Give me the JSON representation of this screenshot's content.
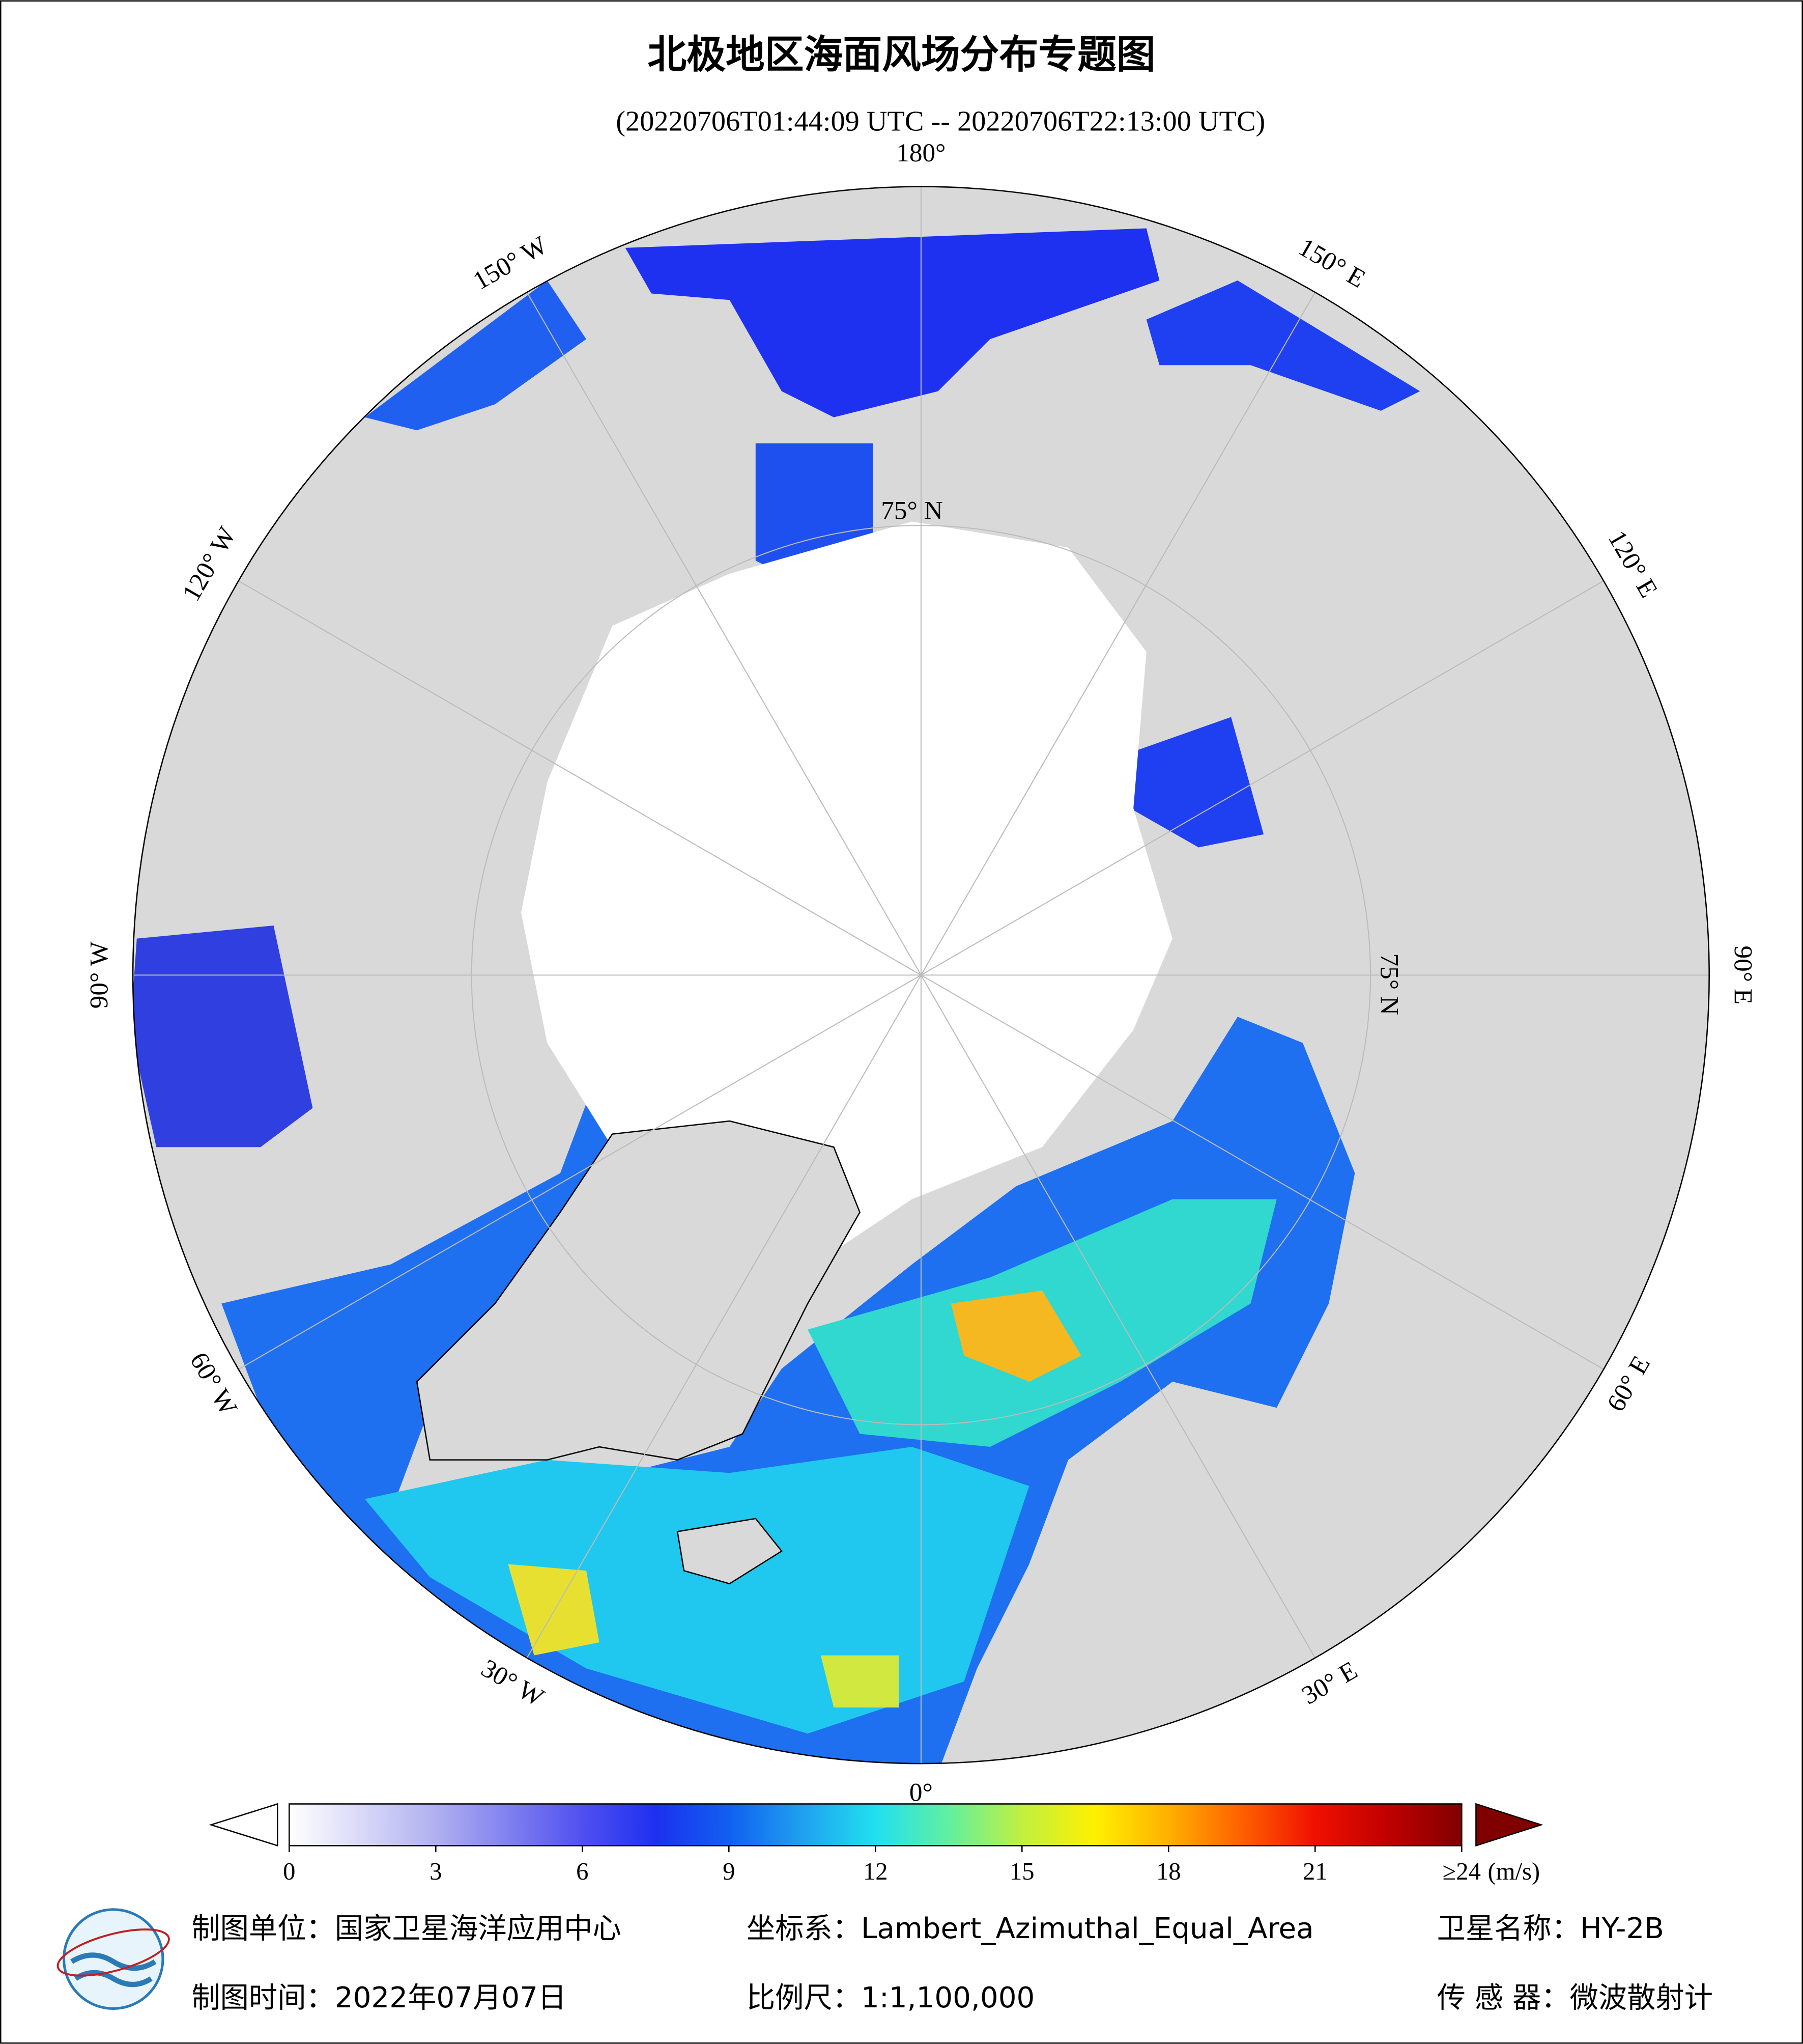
{
  "header": {
    "title": "北极地区海面风场分布专题图",
    "subtitle": "(20220706T01:44:09 UTC -- 20220706T22:13:00 UTC)"
  },
  "map": {
    "longitude_labels": [
      "180°",
      "150° E",
      "120° E",
      "90° E",
      "60° E",
      "30° E",
      "0°",
      "30° W",
      "60° W",
      "90° W",
      "120° W",
      "150° W"
    ],
    "latitude_labels": [
      "75° N",
      "75° N"
    ]
  },
  "colorbar": {
    "clim": [
      0,
      24
    ],
    "ticks": [
      0,
      3,
      6,
      9,
      12,
      15,
      18,
      21,
      {
        "value": 24,
        "label": "≥24"
      }
    ],
    "unit": "(m/s)",
    "colors": [
      "#ffffff",
      "#d8d8f8",
      "#b0b0f0",
      "#8080f0",
      "#5050f0",
      "#1e30f0",
      "#1060f0",
      "#20a0f0",
      "#20e0f0",
      "#60f0a0",
      "#c0f040",
      "#fff000",
      "#ffb000",
      "#ff6000",
      "#f01000",
      "#c00000",
      "#800000"
    ]
  },
  "footer": {
    "unit": "制图单位：国家卫星海洋应用中心",
    "projection": "坐标系：Lambert_Azimuthal_Equal_Area",
    "satellite": "卫星名称：HY-2B",
    "date": "制图时间：2022年07月07日",
    "scale": "比例尺：1:1,100,000",
    "sensor": "传 感 器：微波散射计"
  }
}
